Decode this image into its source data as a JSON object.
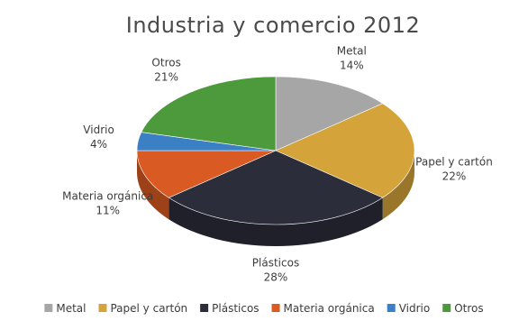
{
  "chart_data": {
    "type": "pie",
    "title": "Industria y comercio 2012",
    "categories": [
      "Metal",
      "Papel y cartón",
      "Plásticos",
      "Materia orgánica",
      "Vidrio",
      "Otros"
    ],
    "values": [
      14,
      22,
      28,
      11,
      4,
      21
    ],
    "value_labels": [
      "14%",
      "22%",
      "28%",
      "11%",
      "4%",
      "21%"
    ],
    "colors": [
      "#a6a6a6",
      "#d4a43a",
      "#2b2d3a",
      "#d95a22",
      "#3b7fc4",
      "#4d9a3c"
    ],
    "legend_position": "bottom",
    "style": "3d"
  }
}
